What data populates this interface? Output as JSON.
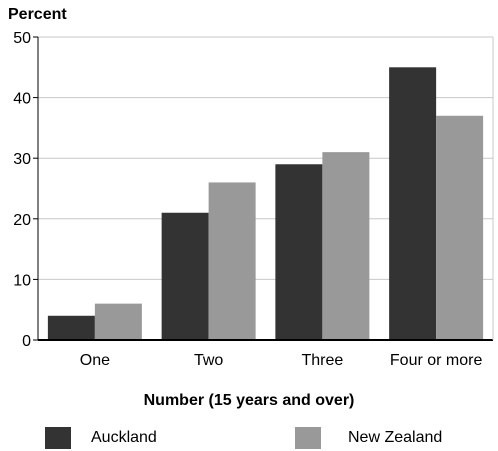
{
  "chart_data": {
    "type": "bar",
    "ylabel": "Percent",
    "xlabel": "Number (15 years and over)",
    "categories": [
      "One",
      "Two",
      "Three",
      "Four or more"
    ],
    "series": [
      {
        "name": "Auckland",
        "color": "#333333",
        "values": [
          4,
          21,
          29,
          45
        ]
      },
      {
        "name": "New Zealand",
        "color": "#999999",
        "values": [
          6,
          26,
          31,
          37
        ]
      }
    ],
    "ylim": [
      0,
      50
    ],
    "yticks": [
      0,
      10,
      20,
      30,
      40,
      50
    ],
    "grid": true,
    "legend": "bottom"
  }
}
